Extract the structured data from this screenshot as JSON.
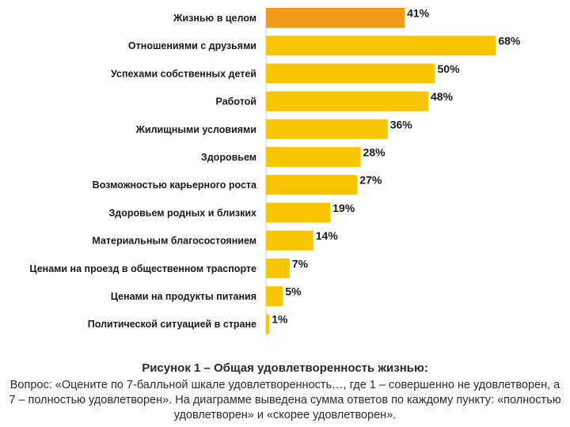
{
  "chart_data": {
    "type": "bar",
    "orientation": "horizontal",
    "categories": [
      "Жизнью в целом",
      "Отношениями с друзьями",
      "Успехами собственных детей",
      "Работой",
      "Жилищными условиями",
      "Здоровьем",
      "Возможностью карьерного роста",
      "Здоровьем родных и близких",
      "Материальным благосостоянием",
      "Ценами на проезд в общественном траспорте",
      "Ценами на продукты питания",
      "Политической ситуацией в стране"
    ],
    "values": [
      41,
      68,
      50,
      48,
      36,
      28,
      27,
      19,
      14,
      7,
      5,
      1
    ],
    "value_labels": [
      "41%",
      "68%",
      "50%",
      "48%",
      "36%",
      "28%",
      "27%",
      "19%",
      "14%",
      "7%",
      "5%",
      "1%"
    ],
    "highlight_index": 0,
    "colors": {
      "bar": "#F7C600",
      "highlight": "#F39A1A"
    },
    "xlim": [
      0,
      100
    ],
    "grid": false
  },
  "caption": {
    "title": "Рисунок 1 – Общая удовлетворенность жизнью:",
    "body": "Вопрос: «Оцените по 7-балльной шкале удовлетворенность…, где 1 – совершенно не удовлетворен, а 7 – полностью удовлетворен». На диаграмме выведена сумма ответов по каждому пункту: «полностью удовлетворен» и «скорее удовлетворен»."
  }
}
